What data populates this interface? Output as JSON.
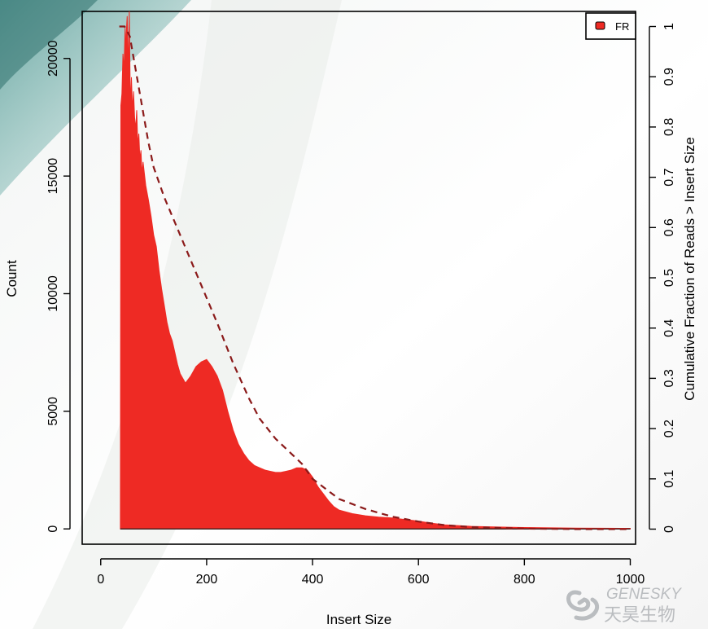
{
  "chart_data": {
    "type": "area",
    "xlabel": "Insert Size",
    "ylabel": "Count",
    "y2label": "Cumulative Fraction of Reads > Insert Size",
    "xlim": [
      -35,
      1010
    ],
    "ylim": [
      -650,
      22000
    ],
    "y2lim": [
      -0.03,
      1.03
    ],
    "xticks": [
      0,
      200,
      400,
      600,
      800,
      1000
    ],
    "yticks": [
      0,
      5000,
      10000,
      15000,
      20000
    ],
    "y2ticks": [
      0,
      0.1,
      0.2,
      0.3,
      0.4,
      0.5,
      0.6,
      0.7,
      0.8,
      0.9,
      1
    ],
    "legend": {
      "label": "FR",
      "position": "top-right"
    },
    "series": [
      {
        "name": "FR",
        "color": "#ee2a24",
        "x": [
          37,
          38,
          40,
          42,
          44,
          46,
          47,
          48,
          50,
          52,
          54,
          56,
          58,
          60,
          62,
          64,
          66,
          68,
          70,
          72,
          74,
          76,
          78,
          80,
          85,
          90,
          95,
          100,
          105,
          110,
          115,
          120,
          125,
          130,
          135,
          140,
          145,
          150,
          160,
          170,
          180,
          190,
          200,
          210,
          220,
          230,
          240,
          250,
          260,
          270,
          280,
          290,
          300,
          310,
          320,
          330,
          340,
          350,
          360,
          370,
          380,
          390,
          400,
          410,
          420,
          430,
          440,
          450,
          475,
          500,
          525,
          550,
          575,
          600,
          625,
          650,
          700,
          750,
          800,
          850,
          900,
          950,
          1000
        ],
        "values": [
          0,
          18000,
          18500,
          20200,
          19500,
          21300,
          19800,
          21000,
          21800,
          19500,
          22000,
          18000,
          19200,
          17800,
          18600,
          17500,
          17000,
          17800,
          16300,
          16800,
          15700,
          16100,
          15100,
          15600,
          14600,
          14000,
          13300,
          12500,
          12000,
          11000,
          10200,
          9500,
          8800,
          8300,
          8000,
          7500,
          7000,
          6600,
          6200,
          6500,
          6900,
          7100,
          7200,
          6900,
          6500,
          5900,
          5000,
          4200,
          3600,
          3200,
          2900,
          2700,
          2600,
          2500,
          2450,
          2400,
          2400,
          2450,
          2500,
          2600,
          2600,
          2500,
          2200,
          1800,
          1500,
          1200,
          950,
          800,
          650,
          560,
          500,
          470,
          400,
          330,
          240,
          170,
          110,
          80,
          60,
          45,
          35,
          30,
          25
        ]
      },
      {
        "name": "Cumulative fraction",
        "axis": "right",
        "style": "dashed",
        "color": "#8b1a1a",
        "x": [
          35,
          45,
          55,
          60,
          70,
          80,
          90,
          100,
          120,
          140,
          160,
          180,
          200,
          220,
          250,
          280,
          300,
          330,
          360,
          380,
          400,
          450,
          500,
          550,
          600,
          650,
          700,
          800,
          900,
          1000
        ],
        "values": [
          1.0,
          1.0,
          0.98,
          0.95,
          0.89,
          0.83,
          0.77,
          0.72,
          0.66,
          0.61,
          0.56,
          0.51,
          0.46,
          0.41,
          0.33,
          0.26,
          0.22,
          0.18,
          0.15,
          0.13,
          0.1,
          0.06,
          0.04,
          0.025,
          0.015,
          0.008,
          0.004,
          0.001,
          0.0,
          0.0
        ]
      }
    ]
  },
  "watermark": {
    "text_en": "GENESKY",
    "text_cn": "天昊生物"
  }
}
